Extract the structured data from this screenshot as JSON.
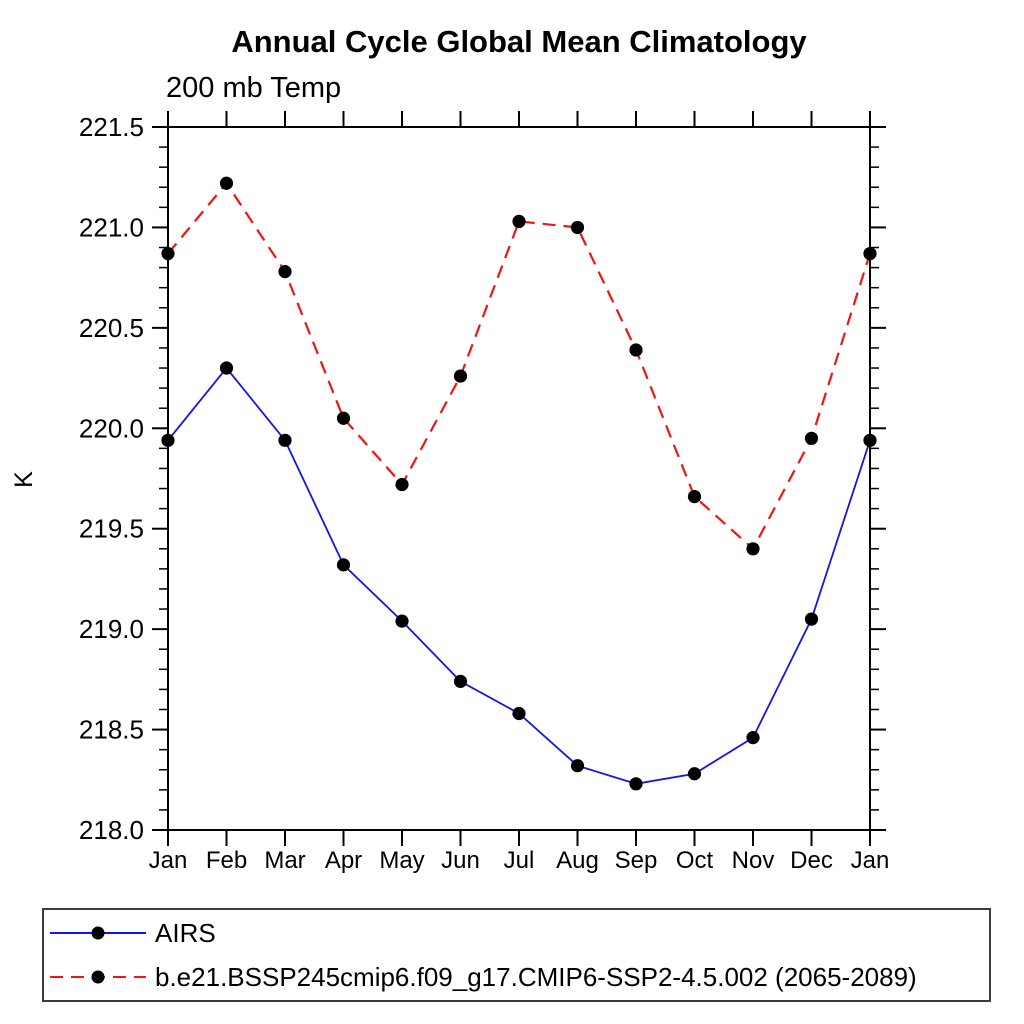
{
  "header": {
    "title": "Annual Cycle Global Mean Climatology",
    "subtitle": "200 mb Temp"
  },
  "chart_data": {
    "type": "line",
    "title": "Annual Cycle Global Mean Climatology",
    "subtitle": "200 mb Temp",
    "xlabel": "",
    "ylabel": "K",
    "categories": [
      "Jan",
      "Feb",
      "Mar",
      "Apr",
      "May",
      "Jun",
      "Jul",
      "Aug",
      "Sep",
      "Oct",
      "Nov",
      "Dec",
      "Jan"
    ],
    "ylim": [
      218.0,
      221.5
    ],
    "ytick_major_step": 0.5,
    "ytick_minor_step": 0.1,
    "ytick_label_format_decimals": 1,
    "grid": false,
    "legend_position": "bottom-left-box",
    "axis_color": "#000000",
    "marker_color": "#000000",
    "series": [
      {
        "name": "AIRS",
        "color": "#1414e6",
        "style": "solid",
        "marker": "circle",
        "values": [
          219.94,
          220.3,
          219.94,
          219.32,
          219.04,
          218.74,
          218.58,
          218.32,
          218.23,
          218.28,
          218.46,
          219.05,
          219.94
        ]
      },
      {
        "name": "b.e21.BSSP245cmip6.f09_g17.CMIP6-SSP2-4.5.002 (2065-2089)",
        "color": "#f01414",
        "style": "dashed",
        "marker": "circle",
        "values": [
          220.87,
          221.22,
          220.78,
          220.05,
          219.72,
          220.26,
          221.03,
          221.0,
          220.39,
          219.66,
          219.4,
          219.95,
          220.87
        ]
      }
    ]
  }
}
